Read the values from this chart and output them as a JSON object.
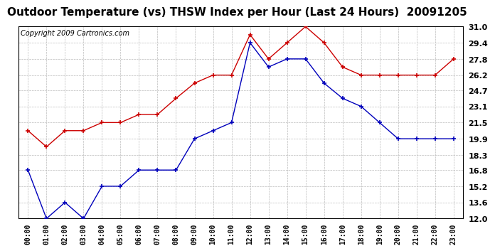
{
  "title": "Outdoor Temperature (vs) THSW Index per Hour (Last 24 Hours)  20091205",
  "copyright": "Copyright 2009 Cartronics.com",
  "hours": [
    "00:00",
    "01:00",
    "02:00",
    "03:00",
    "04:00",
    "05:00",
    "06:00",
    "07:00",
    "08:00",
    "09:00",
    "10:00",
    "11:00",
    "12:00",
    "13:00",
    "14:00",
    "15:00",
    "16:00",
    "17:00",
    "18:00",
    "19:00",
    "20:00",
    "21:00",
    "22:00",
    "23:00"
  ],
  "temp_blue": [
    16.8,
    12.0,
    13.6,
    12.0,
    15.2,
    15.2,
    16.8,
    16.8,
    16.8,
    19.9,
    20.7,
    21.5,
    29.4,
    27.0,
    27.8,
    27.8,
    25.4,
    23.9,
    23.1,
    21.5,
    19.9,
    19.9,
    19.9,
    19.9
  ],
  "thsw_red": [
    20.7,
    19.1,
    20.7,
    20.7,
    21.5,
    21.5,
    22.3,
    22.3,
    23.9,
    25.4,
    26.2,
    26.2,
    30.2,
    27.8,
    29.4,
    31.0,
    29.4,
    27.0,
    26.2,
    26.2,
    26.2,
    26.2,
    26.2,
    27.8
  ],
  "ylim": [
    12.0,
    31.0
  ],
  "yticks": [
    12.0,
    13.6,
    15.2,
    16.8,
    18.3,
    19.9,
    21.5,
    23.1,
    24.7,
    26.2,
    27.8,
    29.4,
    31.0
  ],
  "bg_color": "#ffffff",
  "grid_color": "#bbbbbb",
  "blue_color": "#0000bb",
  "red_color": "#cc0000",
  "title_fontsize": 11,
  "copyright_fontsize": 7
}
